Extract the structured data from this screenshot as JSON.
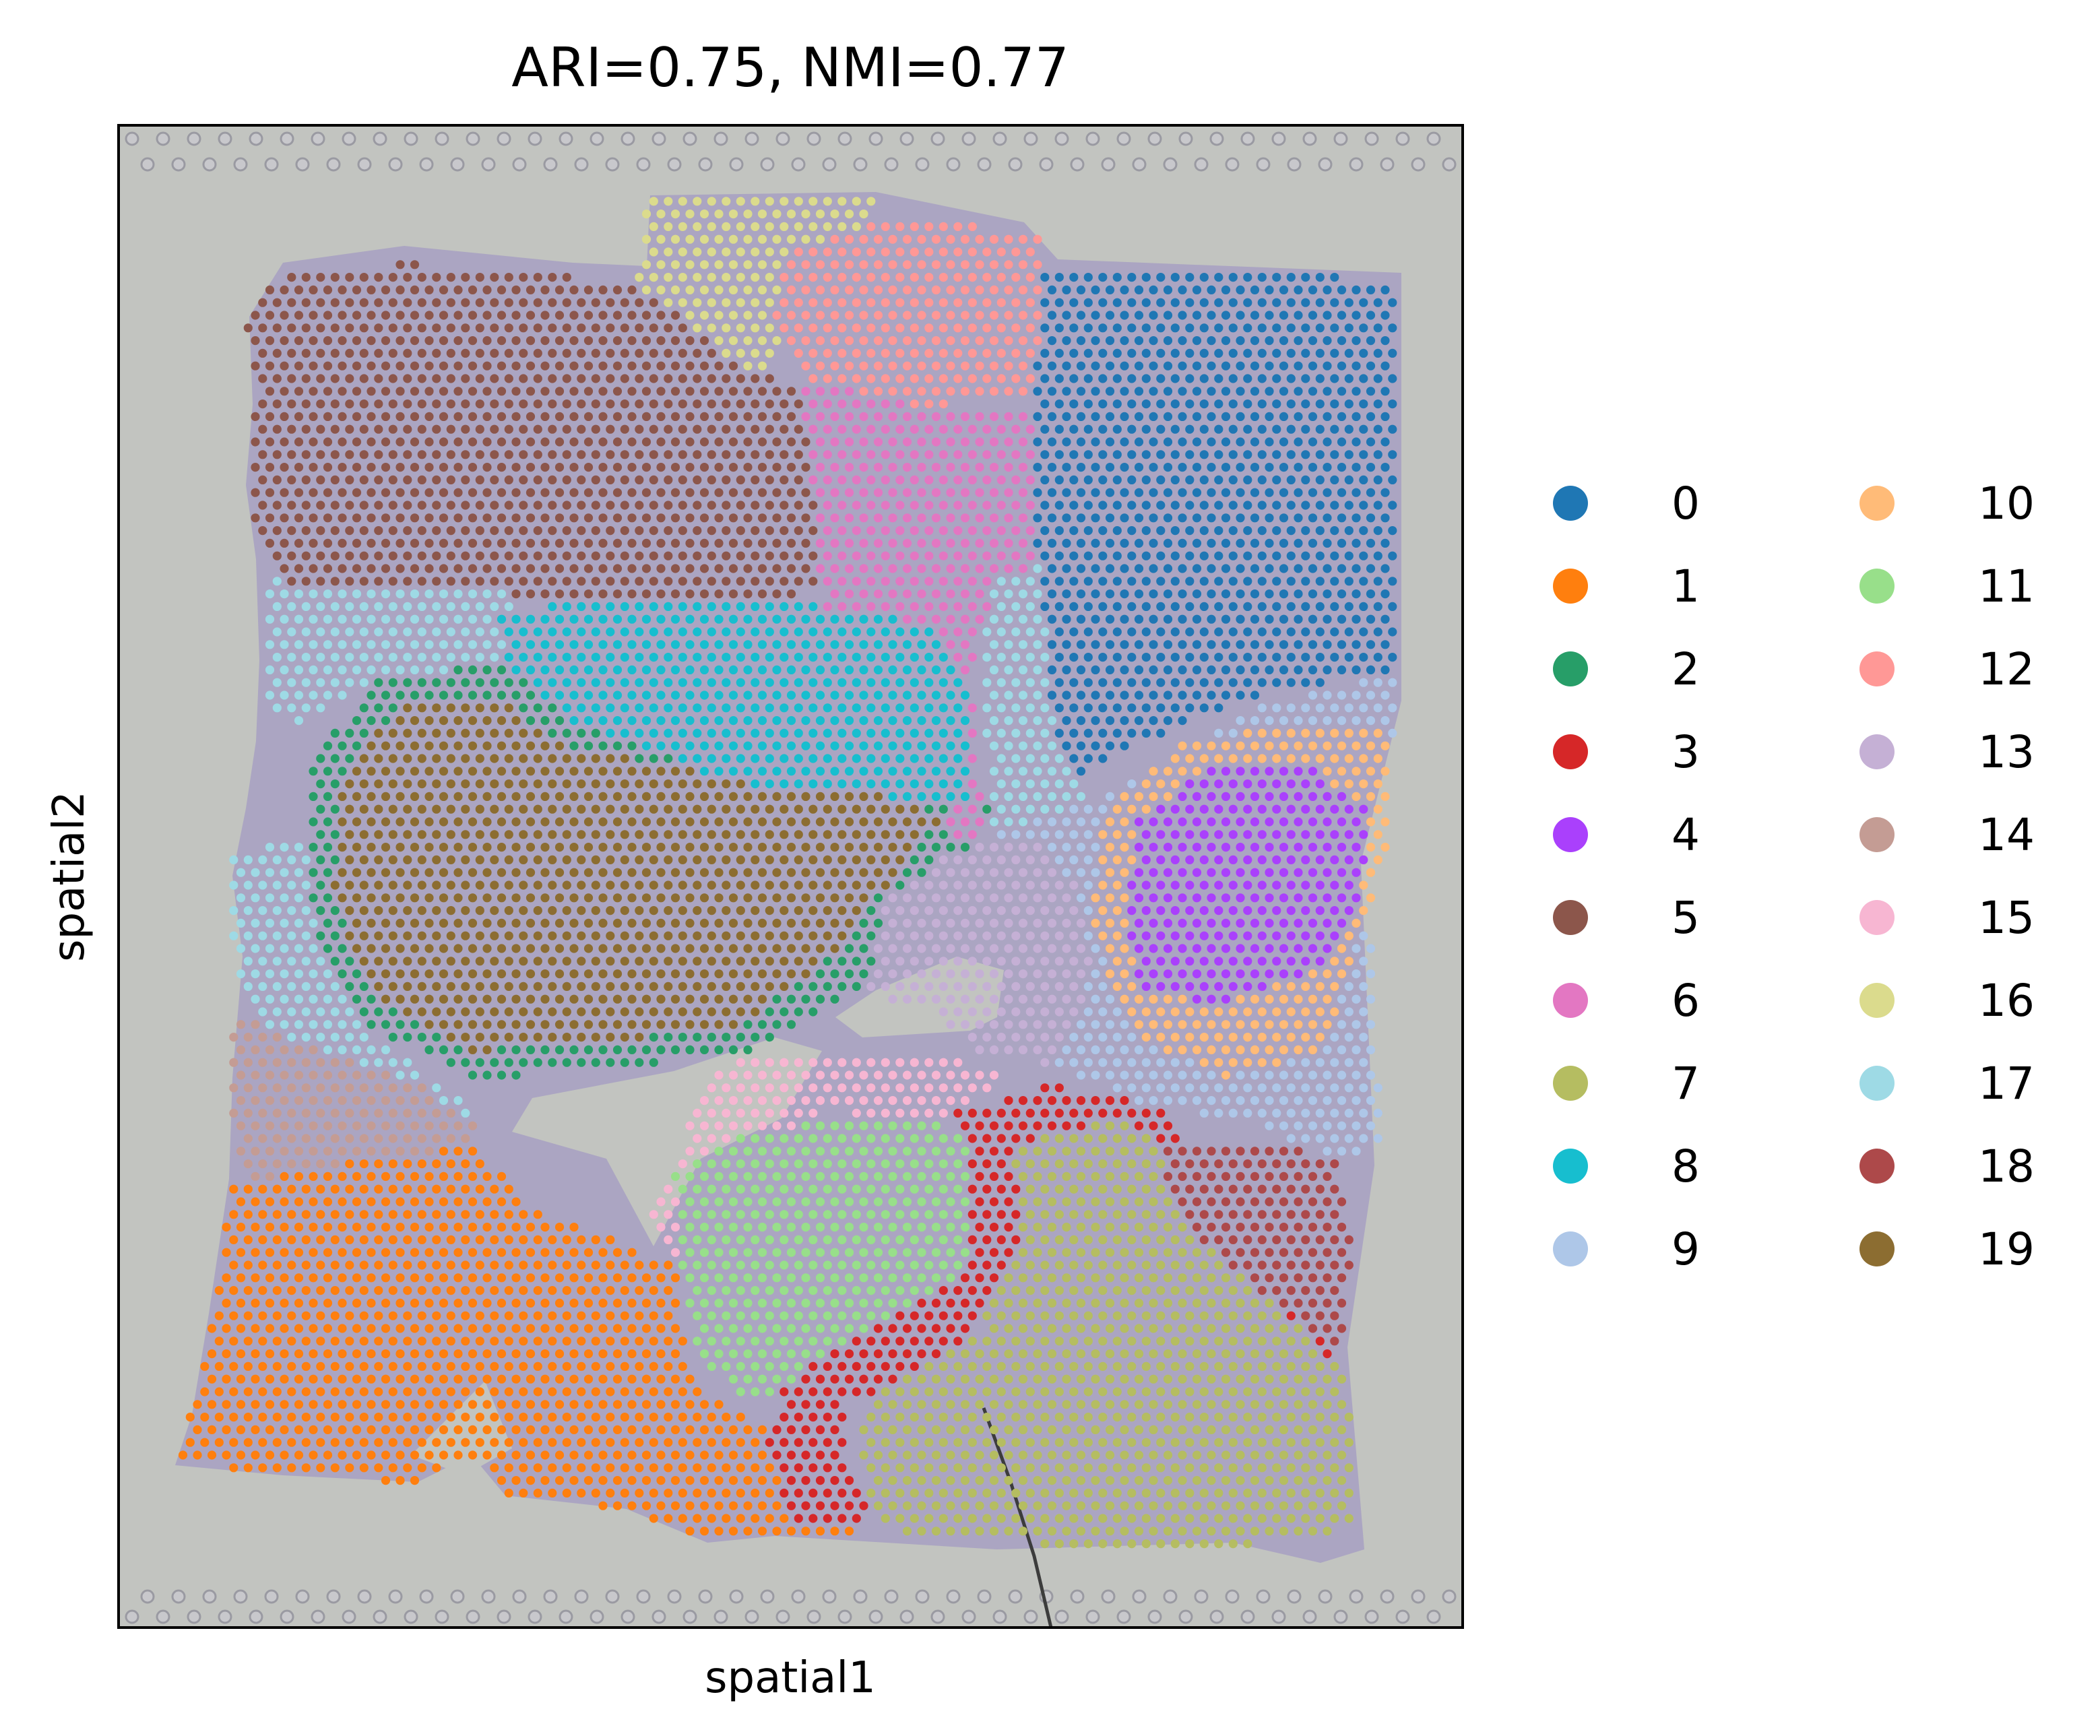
{
  "chart_data": {
    "type": "scatter",
    "title": "ARI=0.75, NMI=0.77",
    "xlabel": "spatial1",
    "ylabel": "spatial2",
    "x_ticks": [],
    "y_ticks": [],
    "legend_placement": "right",
    "background": "tissue-image",
    "clusters": [
      {
        "name": "0",
        "color": "#1f77b4"
      },
      {
        "name": "1",
        "color": "#ff7f0e"
      },
      {
        "name": "2",
        "color": "#279e68"
      },
      {
        "name": "3",
        "color": "#d62728"
      },
      {
        "name": "4",
        "color": "#aa40fc"
      },
      {
        "name": "5",
        "color": "#8c564b"
      },
      {
        "name": "6",
        "color": "#e377c2"
      },
      {
        "name": "7",
        "color": "#b5bd61"
      },
      {
        "name": "8",
        "color": "#17becf"
      },
      {
        "name": "9",
        "color": "#aec7e8"
      },
      {
        "name": "10",
        "color": "#ffbb78"
      },
      {
        "name": "11",
        "color": "#98df8a"
      },
      {
        "name": "12",
        "color": "#ff9896"
      },
      {
        "name": "13",
        "color": "#c5b0d5"
      },
      {
        "name": "14",
        "color": "#c49c94"
      },
      {
        "name": "15",
        "color": "#f7b6d2"
      },
      {
        "name": "16",
        "color": "#dbdb8d"
      },
      {
        "name": "17",
        "color": "#9edae5"
      },
      {
        "name": "18",
        "color": "#ad494a"
      },
      {
        "name": "19",
        "color": "#8c6d31"
      }
    ]
  }
}
